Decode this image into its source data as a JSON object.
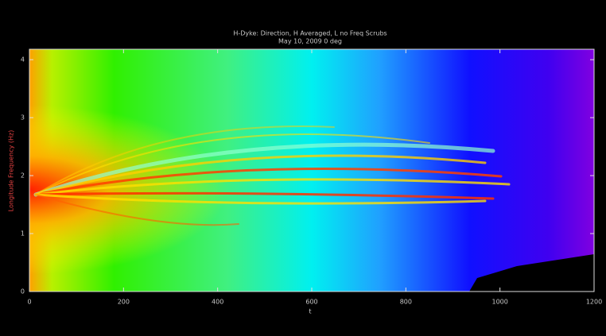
{
  "chart_data": {
    "type": "heatmap",
    "title": "H-Dyke: Direction, H Averaged, L no Freq Scrubs",
    "subtitle": "May 10, 2009  0 deg",
    "x_label": "t",
    "y_label": "Longitude Frequency (Hz)",
    "xlim": [
      0,
      1200
    ],
    "xticks": [
      0,
      200,
      400,
      600,
      800,
      1000,
      1200
    ],
    "ylim": [
      0,
      4.18
    ],
    "yticks": [
      0,
      1,
      2,
      3,
      4
    ]
  }
}
